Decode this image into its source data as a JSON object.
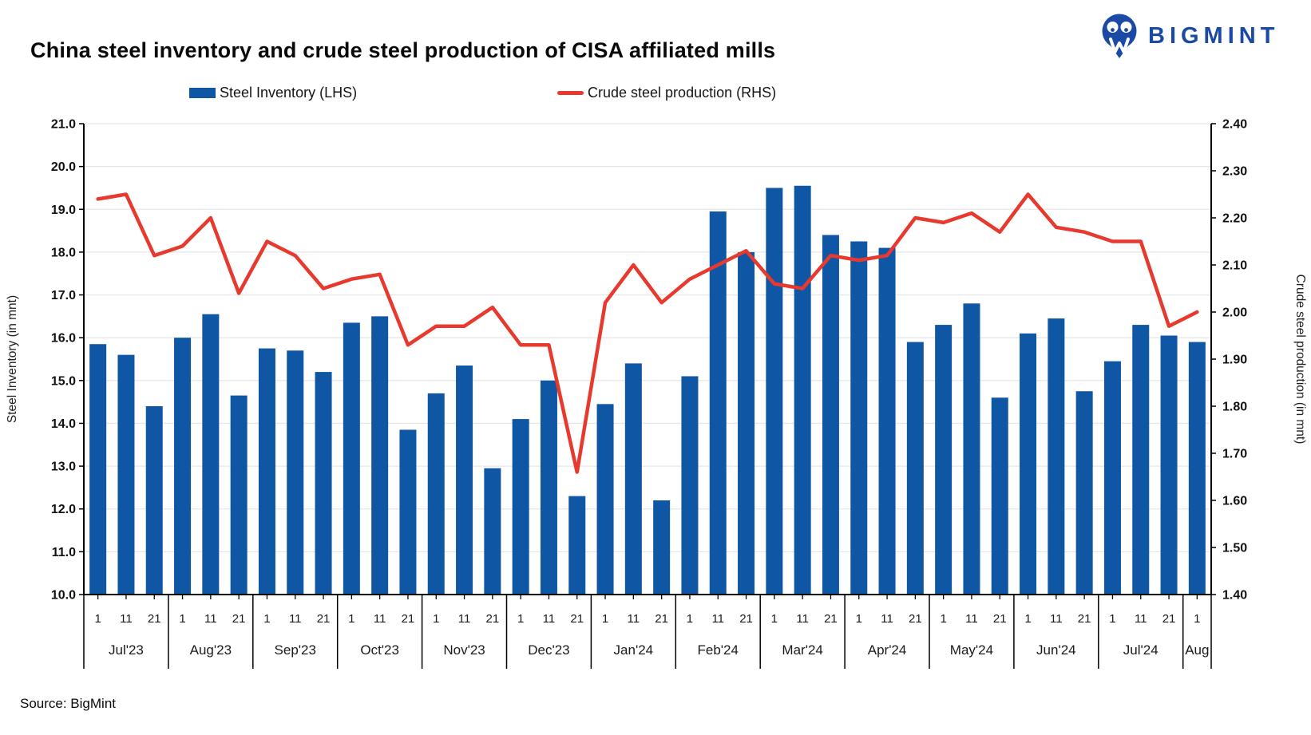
{
  "header": {
    "title": "China steel inventory and crude steel production of CISA affiliated mills",
    "logo_text": "BIGMINT"
  },
  "legend": {
    "bar_label": "Steel Inventory (LHS)",
    "line_label": "Crude steel production (RHS)"
  },
  "footer": {
    "source": "Source: BigMint"
  },
  "colors": {
    "bar": "#0F57A5",
    "line": "#E8392E",
    "logo": "#1B4AA6",
    "grid": "#E7E7E7",
    "axis": "#000000",
    "text": "#1a1a1a"
  },
  "chart_data": {
    "type": "bar+line",
    "title": "China steel inventory and crude steel production of CISA affiliated mills",
    "categories": [
      "Jul'23",
      "Aug'23",
      "Sep'23",
      "Oct'23",
      "Nov'23",
      "Dec'23",
      "Jan'24",
      "Feb'24",
      "Mar'24",
      "Apr'24",
      "May'24",
      "Jun'24",
      "Jul'24",
      "Aug"
    ],
    "ticks_per_month": [
      [
        "1",
        "11",
        "21"
      ],
      [
        "1",
        "11",
        "21"
      ],
      [
        "1",
        "11",
        "21"
      ],
      [
        "1",
        "11",
        "21"
      ],
      [
        "1",
        "11",
        "21"
      ],
      [
        "1",
        "11",
        "21"
      ],
      [
        "1",
        "11",
        "21"
      ],
      [
        "1",
        "11",
        "21"
      ],
      [
        "1",
        "11",
        "21"
      ],
      [
        "1",
        "11",
        "21"
      ],
      [
        "1",
        "11",
        "21"
      ],
      [
        "1",
        "11",
        "21"
      ],
      [
        "1",
        "11",
        "21"
      ],
      [
        "1"
      ]
    ],
    "series": [
      {
        "name": "Steel Inventory (LHS)",
        "type": "bar",
        "axis": "left",
        "values": [
          15.85,
          15.6,
          14.4,
          16.0,
          16.55,
          14.65,
          15.75,
          15.7,
          15.2,
          16.35,
          16.5,
          13.85,
          14.7,
          15.35,
          12.95,
          14.1,
          15.0,
          12.3,
          14.45,
          15.4,
          12.2,
          15.1,
          18.95,
          18.0,
          19.5,
          19.55,
          18.4,
          18.25,
          18.1,
          15.9,
          16.3,
          16.8,
          14.6,
          16.1,
          16.45,
          14.75,
          15.45,
          16.3,
          16.05,
          15.9
        ]
      },
      {
        "name": "Crude steel production (RHS)",
        "type": "line",
        "axis": "right",
        "values": [
          2.24,
          2.25,
          2.12,
          2.14,
          2.2,
          2.04,
          2.15,
          2.12,
          2.05,
          2.07,
          2.08,
          1.93,
          1.97,
          1.97,
          2.01,
          1.93,
          1.93,
          1.66,
          2.02,
          2.1,
          2.02,
          2.07,
          2.1,
          2.13,
          2.06,
          2.05,
          2.12,
          2.11,
          2.12,
          2.2,
          2.19,
          2.21,
          2.17,
          2.25,
          2.18,
          2.17,
          2.15,
          2.15,
          1.97,
          2.0
        ]
      }
    ],
    "left_axis": {
      "title": "Steel Inventory (in mnt)",
      "min": 10.0,
      "max": 21.0,
      "step": 1.0
    },
    "right_axis": {
      "title": "Crude steel production (in mnt)",
      "min": 1.4,
      "max": 2.4,
      "step": 0.1
    },
    "grid": true,
    "legend_position": "top"
  }
}
